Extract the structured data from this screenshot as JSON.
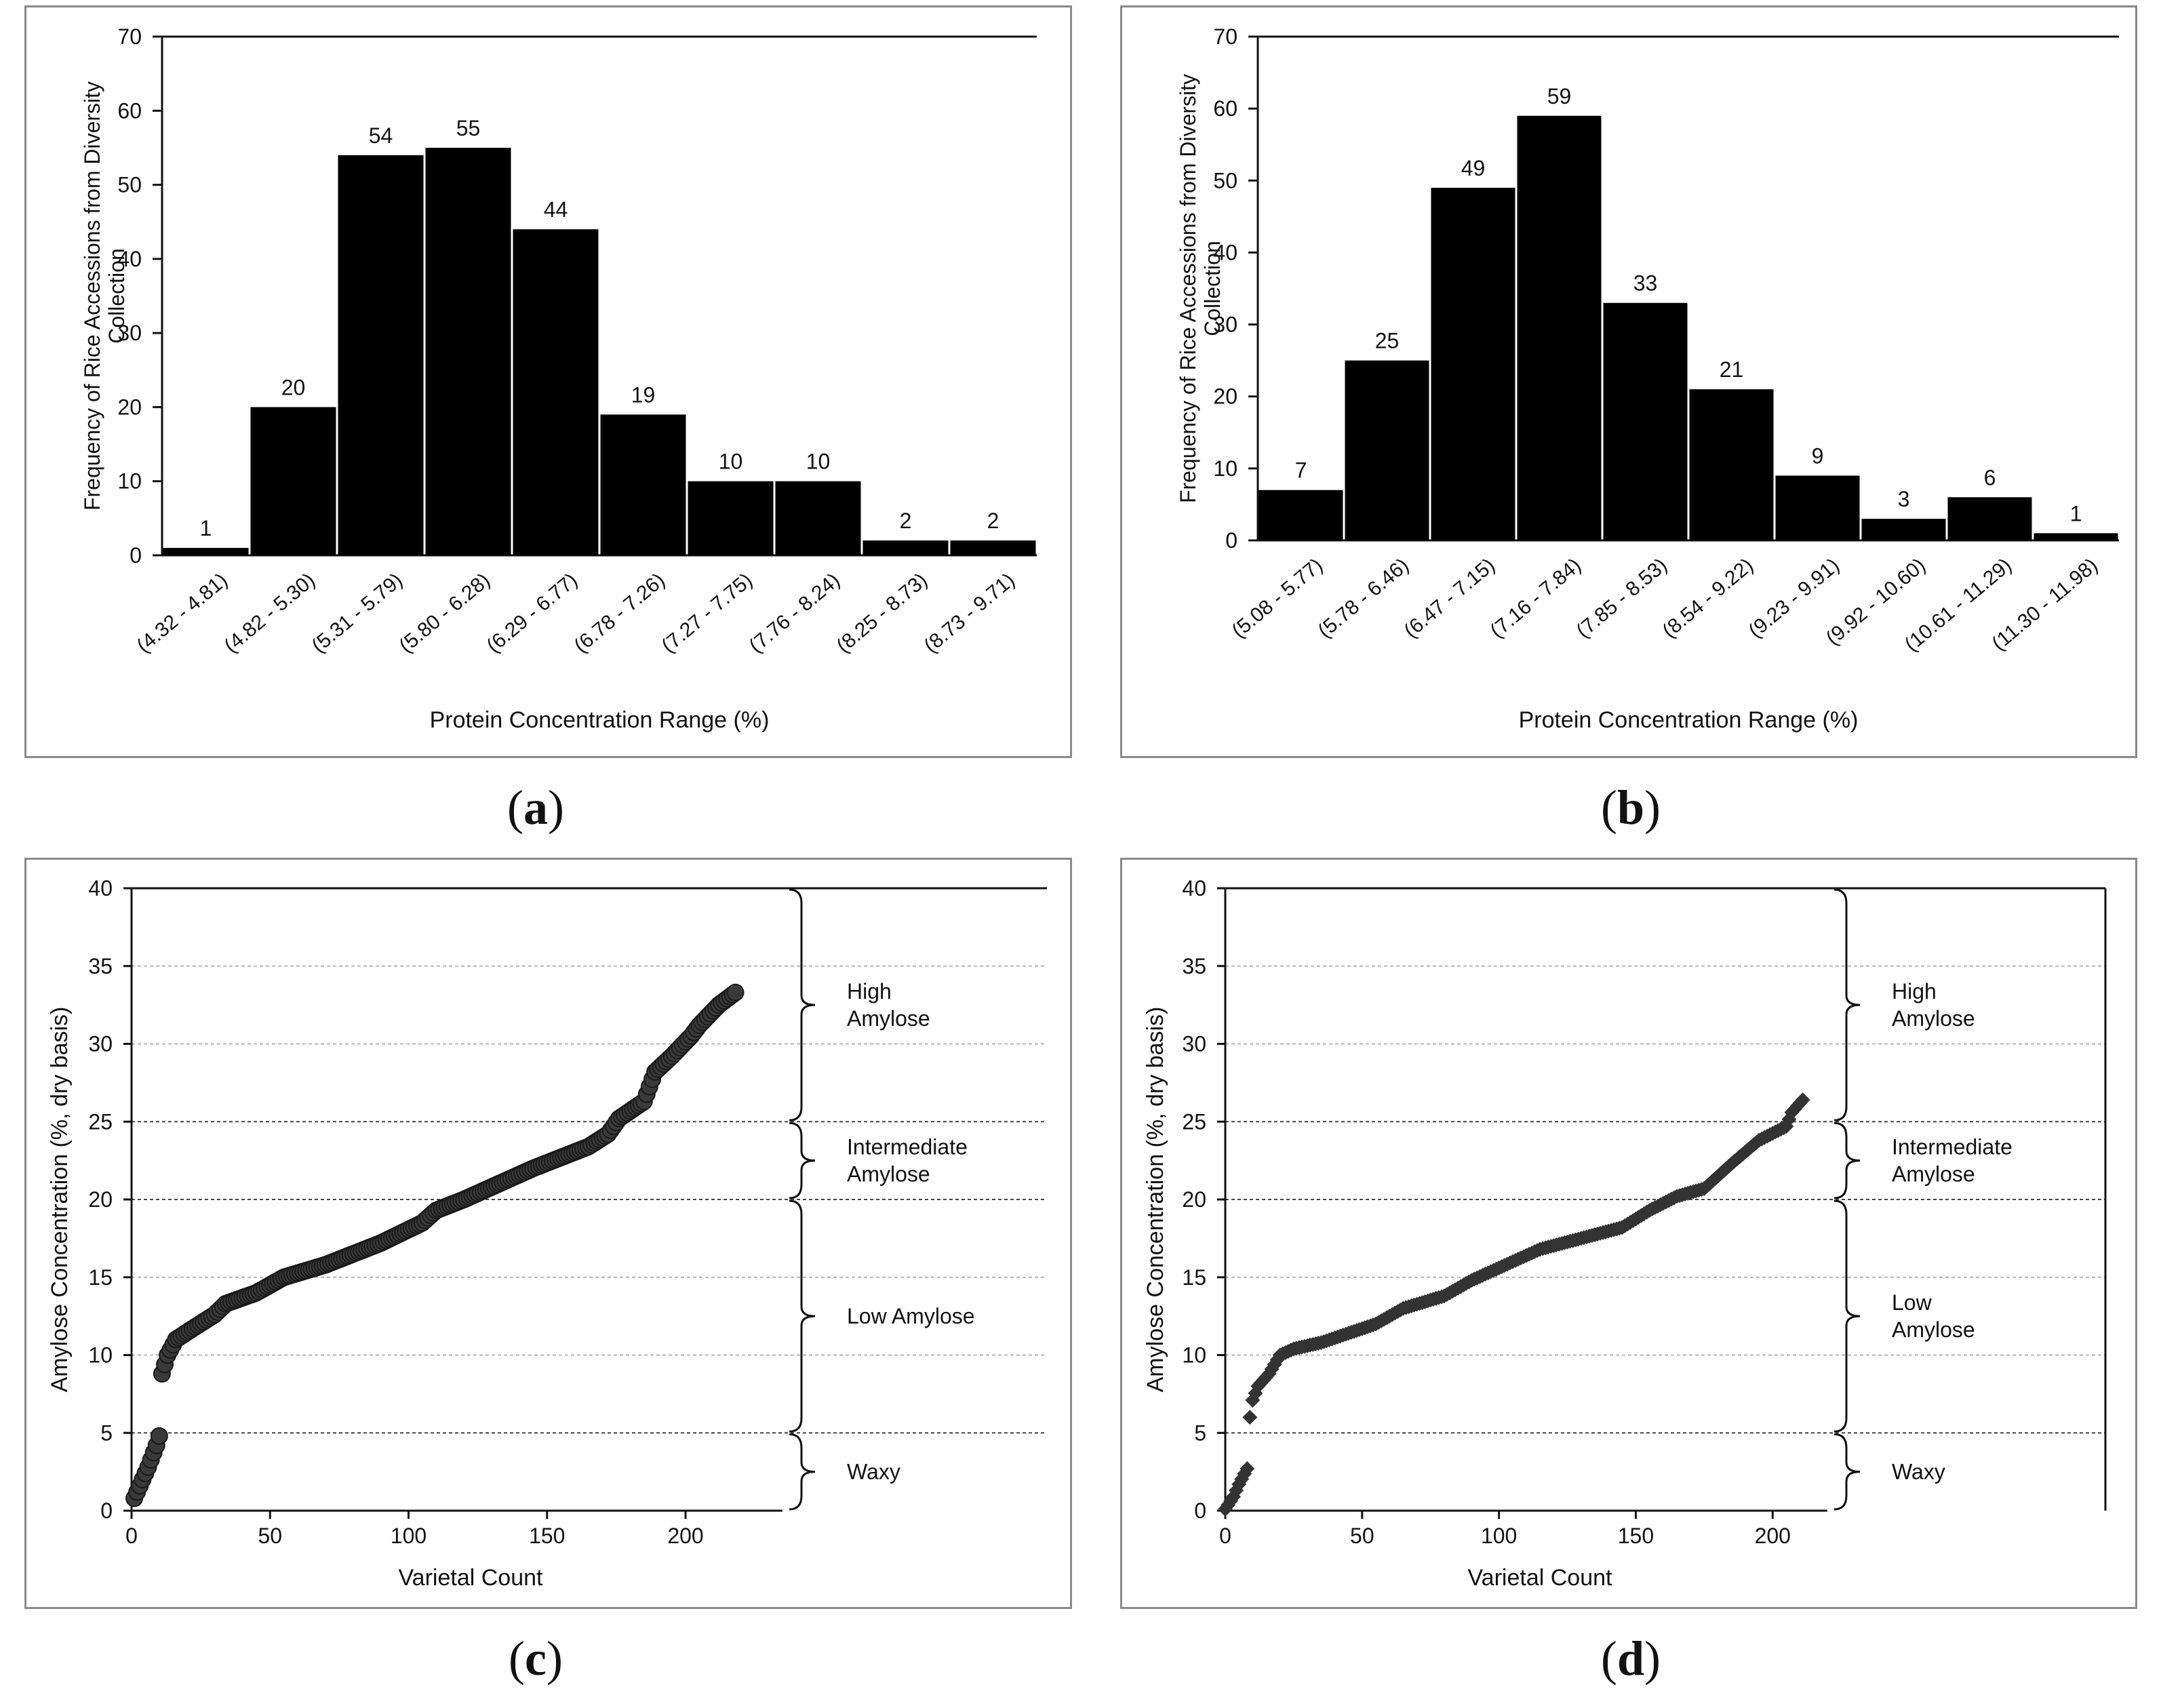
{
  "captions": {
    "a": {
      "pre": "(",
      "letter": "a",
      "post": ")"
    },
    "b": {
      "pre": "(",
      "letter": "b",
      "post": ")"
    },
    "c": {
      "pre": "(",
      "letter": "c",
      "post": ")"
    },
    "d": {
      "pre": "(",
      "letter": "d",
      "post": ")"
    }
  },
  "chart_data": [
    {
      "id": "a",
      "type": "bar",
      "title": "",
      "ylabel_lines": [
        "Frequency of Rice Accessions from Diversity",
        "Collection"
      ],
      "xlabel": "Protein Concentration Range (%)",
      "ylim": [
        0,
        70
      ],
      "yticks": [
        0,
        10,
        20,
        30,
        40,
        50,
        60,
        70
      ],
      "categories": [
        "(4.32 - 4.81)",
        "(4.82 - 5.30)",
        "(5.31 - 5.79)",
        "(5.80 - 6.28)",
        "(6.29 - 6.77)",
        "(6.78 - 7.26)",
        "(7.27 - 7.75)",
        "(7.76 - 8.24)",
        "(8.25 - 8.73)",
        "(8.73 - 9.71)"
      ],
      "values": [
        1,
        20,
        54,
        55,
        44,
        19,
        10,
        10,
        2,
        2
      ],
      "data_labels": [
        "1",
        "20",
        "54",
        "55",
        "44",
        "19",
        "10",
        "10",
        "2",
        "2"
      ]
    },
    {
      "id": "b",
      "type": "bar",
      "title": "",
      "ylabel_lines": [
        "Frequency of Rice Accessions from Diversity",
        "Collection"
      ],
      "xlabel": "Protein Concentration Range (%)",
      "ylim": [
        0,
        70
      ],
      "yticks": [
        0,
        10,
        20,
        30,
        40,
        50,
        60,
        70
      ],
      "categories": [
        "(5.08 - 5.77)",
        "(5.78 - 6.46)",
        "(6.47 - 7.15)",
        "(7.16 - 7.84)",
        "(7.85 - 8.53)",
        "(8.54 - 9.22)",
        "(9.23 - 9.91)",
        "(9.92 - 10.60)",
        "(10.61 - 11.29)",
        "(11.30 - 11.98)"
      ],
      "values": [
        7,
        25,
        49,
        59,
        33,
        21,
        9,
        3,
        6,
        1
      ],
      "data_labels": [
        "7",
        "25",
        "49",
        "59",
        "33",
        "21",
        "9",
        "3",
        "6",
        "1"
      ]
    },
    {
      "id": "c",
      "type": "scatter",
      "title": "",
      "marker": "circle",
      "ylabel": "Amylose Concentration (%, dry basis)",
      "xlabel": "Varietal Count",
      "xlim": [
        0,
        235
      ],
      "ylim": [
        0,
        40
      ],
      "xticks": [
        0,
        50,
        100,
        150,
        200
      ],
      "yticks": [
        0,
        5,
        10,
        15,
        20,
        25,
        30,
        35,
        40
      ],
      "grid": true,
      "curve": [
        [
          0,
          0.4
        ],
        [
          3,
          1.6
        ],
        [
          6,
          2.8
        ],
        [
          9,
          4.2
        ],
        [
          10,
          4.8
        ],
        [
          11,
          8.8
        ],
        [
          13,
          10.0
        ],
        [
          16,
          11.0
        ],
        [
          22,
          11.7
        ],
        [
          30,
          12.6
        ],
        [
          34,
          13.3
        ],
        [
          45,
          14.0
        ],
        [
          50,
          14.5
        ],
        [
          55,
          15.0
        ],
        [
          70,
          15.8
        ],
        [
          90,
          17.2
        ],
        [
          105,
          18.5
        ],
        [
          110,
          19.3
        ],
        [
          120,
          20.0
        ],
        [
          130,
          20.8
        ],
        [
          145,
          22.0
        ],
        [
          155,
          22.7
        ],
        [
          165,
          23.4
        ],
        [
          172,
          24.2
        ],
        [
          176,
          25.2
        ],
        [
          185,
          26.3
        ],
        [
          189,
          28.2
        ],
        [
          195,
          29.2
        ],
        [
          202,
          30.5
        ],
        [
          205,
          31.2
        ],
        [
          212,
          32.5
        ],
        [
          218,
          33.3
        ]
      ],
      "point_count": 218,
      "brackets": [
        {
          "from": 25,
          "to": 40,
          "label_lines": [
            "High",
            "Amylose"
          ]
        },
        {
          "from": 20,
          "to": 25,
          "label_lines": [
            "Intermediate",
            "Amylose"
          ]
        },
        {
          "from": 5,
          "to": 20,
          "label_lines": [
            "Low Amylose"
          ]
        },
        {
          "from": 0,
          "to": 5,
          "label_lines": [
            "Waxy"
          ]
        }
      ]
    },
    {
      "id": "d",
      "type": "scatter",
      "title": "",
      "marker": "diamond",
      "ylabel": "Amylose Concentration (%, dry basis)",
      "xlabel": "Varietal Count",
      "xlim": [
        0,
        220
      ],
      "ylim": [
        0,
        40
      ],
      "xticks": [
        0,
        50,
        100,
        150,
        200
      ],
      "yticks": [
        0,
        5,
        10,
        15,
        20,
        25,
        30,
        35,
        40
      ],
      "grid": true,
      "curve": [
        [
          0,
          0.1
        ],
        [
          3,
          0.9
        ],
        [
          5,
          1.7
        ],
        [
          8,
          2.7
        ],
        [
          9,
          6.0
        ],
        [
          10,
          7.1
        ],
        [
          12,
          8.0
        ],
        [
          16,
          8.8
        ],
        [
          20,
          10.0
        ],
        [
          25,
          10.4
        ],
        [
          35,
          10.8
        ],
        [
          45,
          11.4
        ],
        [
          55,
          12.0
        ],
        [
          65,
          13.0
        ],
        [
          80,
          13.8
        ],
        [
          90,
          14.8
        ],
        [
          100,
          15.6
        ],
        [
          115,
          16.8
        ],
        [
          130,
          17.5
        ],
        [
          145,
          18.2
        ],
        [
          155,
          19.3
        ],
        [
          165,
          20.2
        ],
        [
          175,
          20.7
        ],
        [
          185,
          22.3
        ],
        [
          195,
          23.8
        ],
        [
          205,
          24.7
        ],
        [
          207,
          25.6
        ],
        [
          212,
          26.6
        ]
      ],
      "point_count": 212,
      "brackets": [
        {
          "from": 25,
          "to": 40,
          "label_lines": [
            "High",
            "Amylose"
          ]
        },
        {
          "from": 20,
          "to": 25,
          "label_lines": [
            "Intermediate",
            "Amylose"
          ]
        },
        {
          "from": 5,
          "to": 20,
          "label_lines": [
            "Low",
            "Amylose"
          ]
        },
        {
          "from": 0,
          "to": 5,
          "label_lines": [
            "Waxy"
          ]
        }
      ]
    }
  ]
}
